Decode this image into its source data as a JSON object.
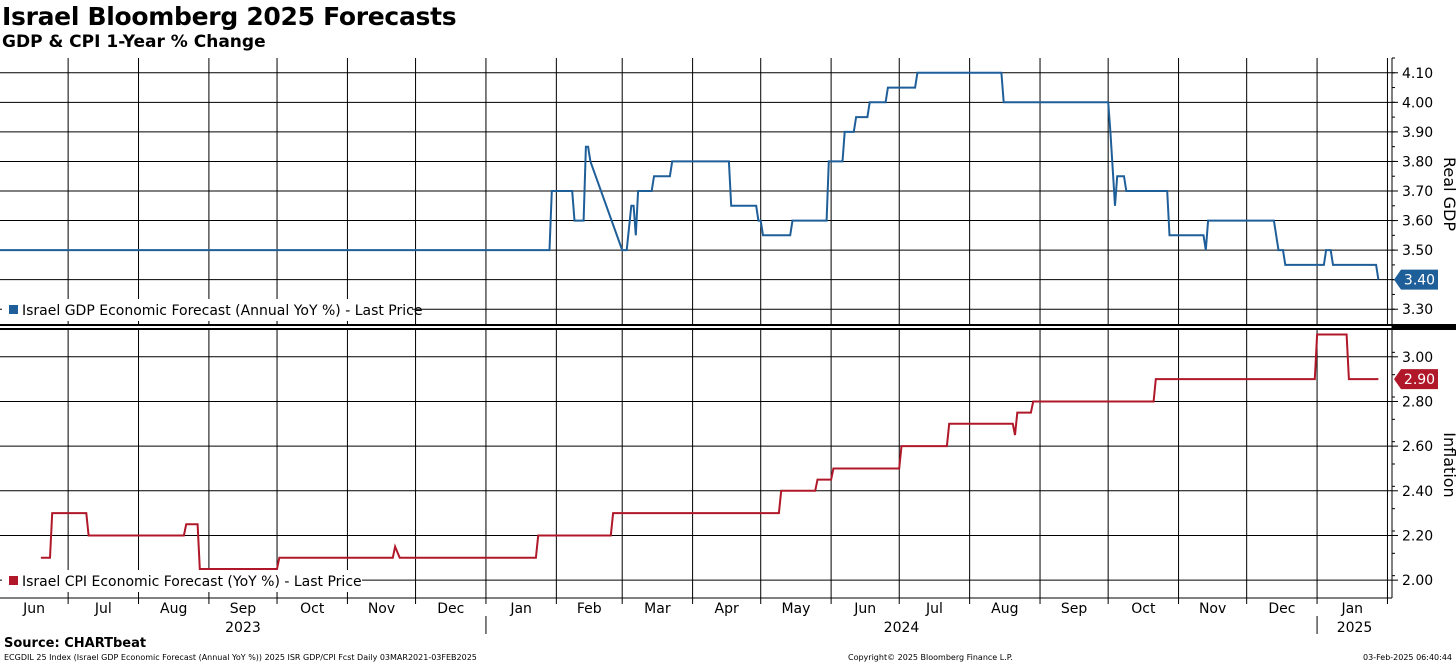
{
  "header": {
    "title": "Israel Bloomberg 2025 Forecasts",
    "subtitle": "GDP & CPI 1-Year % Change"
  },
  "footer": {
    "source": "Source: CHARTbeat",
    "index_info": "ECGDIL 25 Index (Israel GDP Economic Forecast (Annual YoY %)) 2025 ISR GDP/CPI Fcst  Daily 03MAR2021-03FEB2025",
    "copyright": "Copyright© 2025 Bloomberg Finance L.P.",
    "timestamp": "03-Feb-2025 06:40:44"
  },
  "chart_data": [
    {
      "type": "line",
      "panel": "top",
      "ylabel": "Real GDP",
      "ylim": [
        3.25,
        4.15
      ],
      "yticks": [
        "4.10",
        "4.00",
        "3.90",
        "3.80",
        "3.70",
        "3.60",
        "3.50",
        "3.40",
        "3.30"
      ],
      "legend": "Israel GDP Economic Forecast (Annual YoY %) - Last Price",
      "legend_position": "bottom-left",
      "last_value": "3.40",
      "color": "#1f5f99",
      "grid": true,
      "series": [
        {
          "name": "Israel GDP Economic Forecast (Annual YoY %) - Last Price",
          "x": [
            "2023-06-01",
            "2024-01-29",
            "2024-01-30",
            "2024-02-08",
            "2024-02-09",
            "2024-02-12",
            "2024-02-13",
            "2024-02-14",
            "2024-02-15",
            "2024-02-16",
            "2024-03-01",
            "2024-03-02",
            "2024-03-03",
            "2024-03-05",
            "2024-03-06",
            "2024-03-07",
            "2024-03-08",
            "2024-03-14",
            "2024-03-15",
            "2024-03-22",
            "2024-03-23",
            "2024-04-04",
            "2024-04-05",
            "2024-04-17",
            "2024-04-18",
            "2024-04-29",
            "2024-04-30",
            "2024-05-01",
            "2024-05-02",
            "2024-05-14",
            "2024-05-15",
            "2024-05-30",
            "2024-05-31",
            "2024-06-06",
            "2024-06-07",
            "2024-06-11",
            "2024-06-12",
            "2024-06-17",
            "2024-06-18",
            "2024-06-25",
            "2024-06-26",
            "2024-07-08",
            "2024-07-09",
            "2024-08-15",
            "2024-08-16",
            "2024-10-01",
            "2024-10-02",
            "2024-10-04",
            "2024-10-05",
            "2024-10-08",
            "2024-10-09",
            "2024-10-27",
            "2024-10-28",
            "2024-11-12",
            "2024-11-13",
            "2024-11-14",
            "2024-12-13",
            "2024-12-15",
            "2024-12-17",
            "2024-12-18",
            "2025-01-04",
            "2025-01-05",
            "2025-01-07",
            "2025-01-08",
            "2025-01-27",
            "2025-01-28"
          ],
          "y": [
            3.5,
            3.5,
            3.7,
            3.7,
            3.6,
            3.6,
            3.6,
            3.85,
            3.85,
            3.8,
            3.5,
            3.5,
            3.5,
            3.65,
            3.65,
            3.55,
            3.7,
            3.7,
            3.75,
            3.75,
            3.8,
            3.8,
            3.8,
            3.8,
            3.65,
            3.65,
            3.6,
            3.6,
            3.55,
            3.55,
            3.6,
            3.6,
            3.8,
            3.8,
            3.9,
            3.9,
            3.95,
            3.95,
            4.0,
            4.0,
            4.05,
            4.05,
            4.1,
            4.1,
            4.0,
            4.0,
            3.9,
            3.65,
            3.75,
            3.75,
            3.7,
            3.7,
            3.55,
            3.55,
            3.5,
            3.6,
            3.6,
            3.5,
            3.5,
            3.45,
            3.45,
            3.5,
            3.5,
            3.45,
            3.45,
            3.4
          ]
        }
      ]
    },
    {
      "type": "line",
      "panel": "bottom",
      "ylabel": "Inflation",
      "ylim": [
        1.92,
        3.12
      ],
      "yticks": [
        "3.00",
        "2.80",
        "2.60",
        "2.40",
        "2.20",
        "2.00"
      ],
      "legend": "Israel CPI Economic Forecast (YoY %) - Last Price",
      "legend_position": "bottom-left",
      "last_value": "2.90",
      "color": "#b0182a",
      "grid": true,
      "series": [
        {
          "name": "Israel CPI Economic Forecast (YoY %) - Last Price",
          "x": [
            "2023-06-19",
            "2023-06-23",
            "2023-06-24",
            "2023-07-09",
            "2023-07-10",
            "2023-08-21",
            "2023-08-22",
            "2023-08-27",
            "2023-08-28",
            "2023-10-01",
            "2023-10-02",
            "2023-11-21",
            "2023-11-22",
            "2023-11-24",
            "2024-01-23",
            "2024-01-24",
            "2024-02-25",
            "2024-02-26",
            "2024-05-09",
            "2024-05-10",
            "2024-05-25",
            "2024-05-26",
            "2024-06-01",
            "2024-06-02",
            "2024-07-01",
            "2024-07-02",
            "2024-07-22",
            "2024-07-23",
            "2024-08-20",
            "2024-08-21",
            "2024-08-22",
            "2024-08-28",
            "2024-08-29",
            "2024-10-21",
            "2024-10-22",
            "2024-12-31",
            "2025-01-01",
            "2025-01-14",
            "2025-01-15",
            "2025-01-28"
          ],
          "y": [
            2.1,
            2.1,
            2.3,
            2.3,
            2.2,
            2.2,
            2.25,
            2.25,
            2.05,
            2.05,
            2.1,
            2.1,
            2.15,
            2.1,
            2.1,
            2.2,
            2.2,
            2.3,
            2.3,
            2.4,
            2.4,
            2.45,
            2.45,
            2.5,
            2.5,
            2.6,
            2.6,
            2.7,
            2.7,
            2.65,
            2.75,
            2.75,
            2.8,
            2.8,
            2.9,
            2.9,
            3.1,
            3.1,
            2.9,
            2.9
          ]
        }
      ]
    },
    {
      "type": "axis",
      "panel": "x-axis",
      "months": [
        "Jun",
        "Jul",
        "Aug",
        "Sep",
        "Oct",
        "Nov",
        "Dec",
        "Jan",
        "Feb",
        "Mar",
        "Apr",
        "May",
        "Jun",
        "Jul",
        "Aug",
        "Sep",
        "Oct",
        "Nov",
        "Dec",
        "Jan"
      ],
      "month_starts": [
        "2023-06-01",
        "2023-07-01",
        "2023-08-01",
        "2023-09-01",
        "2023-10-01",
        "2023-11-01",
        "2023-12-01",
        "2024-01-01",
        "2024-02-01",
        "2024-03-01",
        "2024-04-01",
        "2024-05-01",
        "2024-06-01",
        "2024-07-01",
        "2024-08-01",
        "2024-09-01",
        "2024-10-01",
        "2024-11-01",
        "2024-12-01",
        "2025-01-01",
        "2025-02-01"
      ],
      "years": [
        "2023",
        "2024",
        "2025"
      ],
      "year_starts": [
        "2023-06-01",
        "2024-01-01",
        "2025-01-01"
      ],
      "xlim": [
        "2023-06-01",
        "2025-02-03"
      ]
    }
  ]
}
